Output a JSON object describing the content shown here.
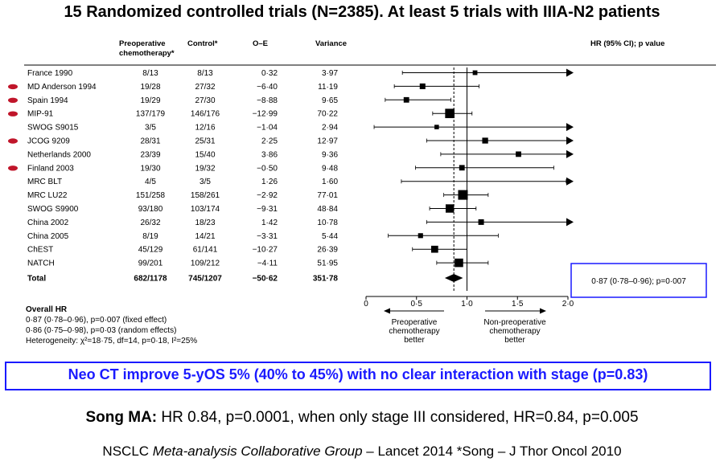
{
  "title": "15 Randomized controlled trials (N=2385). At least 5 trials with IIIA-N2 patients",
  "columns": {
    "preop": "Preoperative chemotherapy*",
    "control": "Control*",
    "oe": "O–E",
    "variance": "Variance",
    "hr": "HR (95% CI); p value"
  },
  "overall": {
    "heading": "Overall HR",
    "lines": [
      "0·87 (0·78–0·96), p=0·007 (fixed effect)",
      "0·86 (0·75–0·98), p=0·03 (random effects)",
      "Heterogeneity: χ²=18·75, df=14, p=0·18, I²=25%"
    ]
  },
  "summary_box": "0·87 (0·78–0·96); p=0·007",
  "callout": "Neo CT improve 5-yOS 5% (40% to 45%) with no clear interaction with stage (p=0.83)",
  "song": {
    "label": "Song MA:",
    "text": " HR 0.84, p=0.0001, when only stage III considered, HR=0.84, p=0.005"
  },
  "citation": {
    "pre": "NSCLC ",
    "italic": "Meta-analysis Collaborative Group",
    "post": " – Lancet 2014 *Song – J Thor Oncol 2010"
  },
  "colors": {
    "accent": "#1a1aff",
    "marker_red": "#c0152a"
  },
  "chart_data": {
    "type": "forest",
    "xlim": [
      0,
      2.0
    ],
    "xticks": [
      "0",
      "0·5",
      "1·0",
      "1·5",
      "2·0"
    ],
    "xtick_values": [
      0,
      0.5,
      1.0,
      1.5,
      2.0
    ],
    "reference_line": 1.0,
    "pooled_line": 0.87,
    "axis_labels": {
      "left": "Preoperative chemotherapy better",
      "right": "Non-preoperative chemotherapy better"
    },
    "trials": [
      {
        "name": "France 1990",
        "preop": "8/13",
        "control": "8/13",
        "oe": "0·32",
        "variance": "3·97",
        "hr": 1.08,
        "lo": 0.36,
        "hi": 2.0,
        "arrow": true,
        "weight": 3.97,
        "marked": false
      },
      {
        "name": "MD Anderson 1994",
        "preop": "19/28",
        "control": "27/32",
        "oe": "−6·40",
        "variance": "11·19",
        "hr": 0.56,
        "lo": 0.28,
        "hi": 1.12,
        "arrow": false,
        "weight": 11.19,
        "marked": true
      },
      {
        "name": "Spain 1994",
        "preop": "19/29",
        "control": "27/30",
        "oe": "−8·88",
        "variance": "9·65",
        "hr": 0.4,
        "lo": 0.19,
        "hi": 0.84,
        "arrow": false,
        "weight": 9.65,
        "marked": true
      },
      {
        "name": "MIP-91",
        "preop": "137/179",
        "control": "146/176",
        "oe": "−12·99",
        "variance": "70·22",
        "hr": 0.83,
        "lo": 0.66,
        "hi": 1.05,
        "arrow": false,
        "weight": 70.22,
        "marked": true
      },
      {
        "name": "SWOG S9015",
        "preop": "3/5",
        "control": "12/16",
        "oe": "−1·04",
        "variance": "2·94",
        "hr": 0.7,
        "lo": 0.08,
        "hi": 2.0,
        "arrow": true,
        "weight": 2.94,
        "marked": false
      },
      {
        "name": "JCOG 9209",
        "preop": "28/31",
        "control": "25/31",
        "oe": "2·25",
        "variance": "12·97",
        "hr": 1.18,
        "lo": 0.6,
        "hi": 2.0,
        "arrow": true,
        "weight": 12.97,
        "marked": true
      },
      {
        "name": "Netherlands 2000",
        "preop": "23/39",
        "control": "15/40",
        "oe": "3·86",
        "variance": "9·36",
        "hr": 1.51,
        "lo": 0.74,
        "hi": 2.0,
        "arrow": true,
        "weight": 9.36,
        "marked": false
      },
      {
        "name": "Finland 2003",
        "preop": "19/30",
        "control": "19/32",
        "oe": "−0·50",
        "variance": "9·48",
        "hr": 0.95,
        "lo": 0.49,
        "hi": 1.86,
        "arrow": false,
        "weight": 9.48,
        "marked": true
      },
      {
        "name": "MRC BLT",
        "preop": "4/5",
        "control": "3/5",
        "oe": "1·26",
        "variance": "1·60",
        "hr": 2.0,
        "lo": 0.35,
        "hi": 2.0,
        "arrow": true,
        "weight": 1.6,
        "marked": false
      },
      {
        "name": "MRC LU22",
        "preop": "151/258",
        "control": "158/261",
        "oe": "−2·92",
        "variance": "77·01",
        "hr": 0.96,
        "lo": 0.77,
        "hi": 1.21,
        "arrow": false,
        "weight": 77.01,
        "marked": false
      },
      {
        "name": "SWOG S9900",
        "preop": "93/180",
        "control": "103/174",
        "oe": "−9·31",
        "variance": "48·84",
        "hr": 0.83,
        "lo": 0.63,
        "hi": 1.09,
        "arrow": false,
        "weight": 48.84,
        "marked": false
      },
      {
        "name": "China 2002",
        "preop": "26/32",
        "control": "18/23",
        "oe": "1·42",
        "variance": "10·78",
        "hr": 1.14,
        "lo": 0.6,
        "hi": 2.0,
        "arrow": true,
        "weight": 10.78,
        "marked": false
      },
      {
        "name": "China 2005",
        "preop": "8/19",
        "control": "14/21",
        "oe": "−3·31",
        "variance": "5·44",
        "hr": 0.54,
        "lo": 0.22,
        "hi": 1.31,
        "arrow": false,
        "weight": 5.44,
        "marked": false
      },
      {
        "name": "ChEST",
        "preop": "45/129",
        "control": "61/141",
        "oe": "−10·27",
        "variance": "26·39",
        "hr": 0.68,
        "lo": 0.46,
        "hi": 1.0,
        "arrow": false,
        "weight": 26.39,
        "marked": false
      },
      {
        "name": "NATCH",
        "preop": "99/201",
        "control": "109/212",
        "oe": "−4·11",
        "variance": "51·95",
        "hr": 0.92,
        "lo": 0.7,
        "hi": 1.21,
        "arrow": false,
        "weight": 51.95,
        "marked": false
      }
    ],
    "total": {
      "name": "Total",
      "preop": "682/1178",
      "control": "745/1207",
      "oe": "−50·62",
      "variance": "351·78",
      "hr": 0.87,
      "lo": 0.78,
      "hi": 0.96
    }
  }
}
